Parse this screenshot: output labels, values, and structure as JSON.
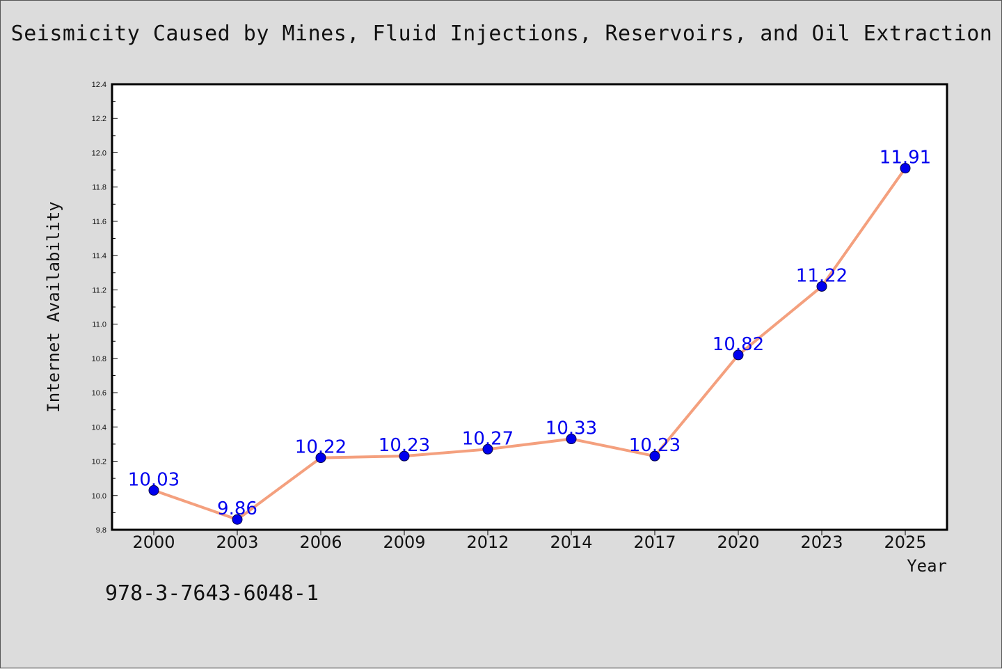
{
  "title": "Seismicity Caused by Mines, Fluid Injections, Reservoirs, and Oil Extraction",
  "footnote": "978-3-7643-6048-1",
  "colors": {
    "line": "#f4a07e",
    "marker": "#0000ee",
    "label": "#0000ee",
    "background": "#dcdcdc",
    "plot_bg": "#ffffff"
  },
  "chart_data": {
    "type": "line",
    "title": "Seismicity Caused by Mines, Fluid Injections, Reservoirs, and Oil Extraction",
    "xlabel": "Year",
    "ylabel": "Internet Availability",
    "categories": [
      "2000",
      "2003",
      "2006",
      "2009",
      "2012",
      "2014",
      "2017",
      "2020",
      "2023",
      "2025"
    ],
    "series": [
      {
        "values": [
          10.03,
          9.86,
          10.22,
          10.23,
          10.27,
          10.33,
          10.23,
          10.82,
          11.22,
          11.91
        ]
      }
    ],
    "data_labels": [
      "10.03",
      "9.86",
      "10.22",
      "10.23",
      "10.27",
      "10.33",
      "10.23",
      "10.82",
      "11.22",
      "11.91"
    ],
    "ylim": [
      9.8,
      12.4
    ],
    "yticks": [
      "9.8",
      "10.0",
      "10.2",
      "10.4",
      "10.6",
      "10.8",
      "11.0",
      "11.2",
      "11.4",
      "11.6",
      "11.8",
      "12.0",
      "12.2",
      "12.4"
    ],
    "grid": false,
    "legend": "none"
  }
}
